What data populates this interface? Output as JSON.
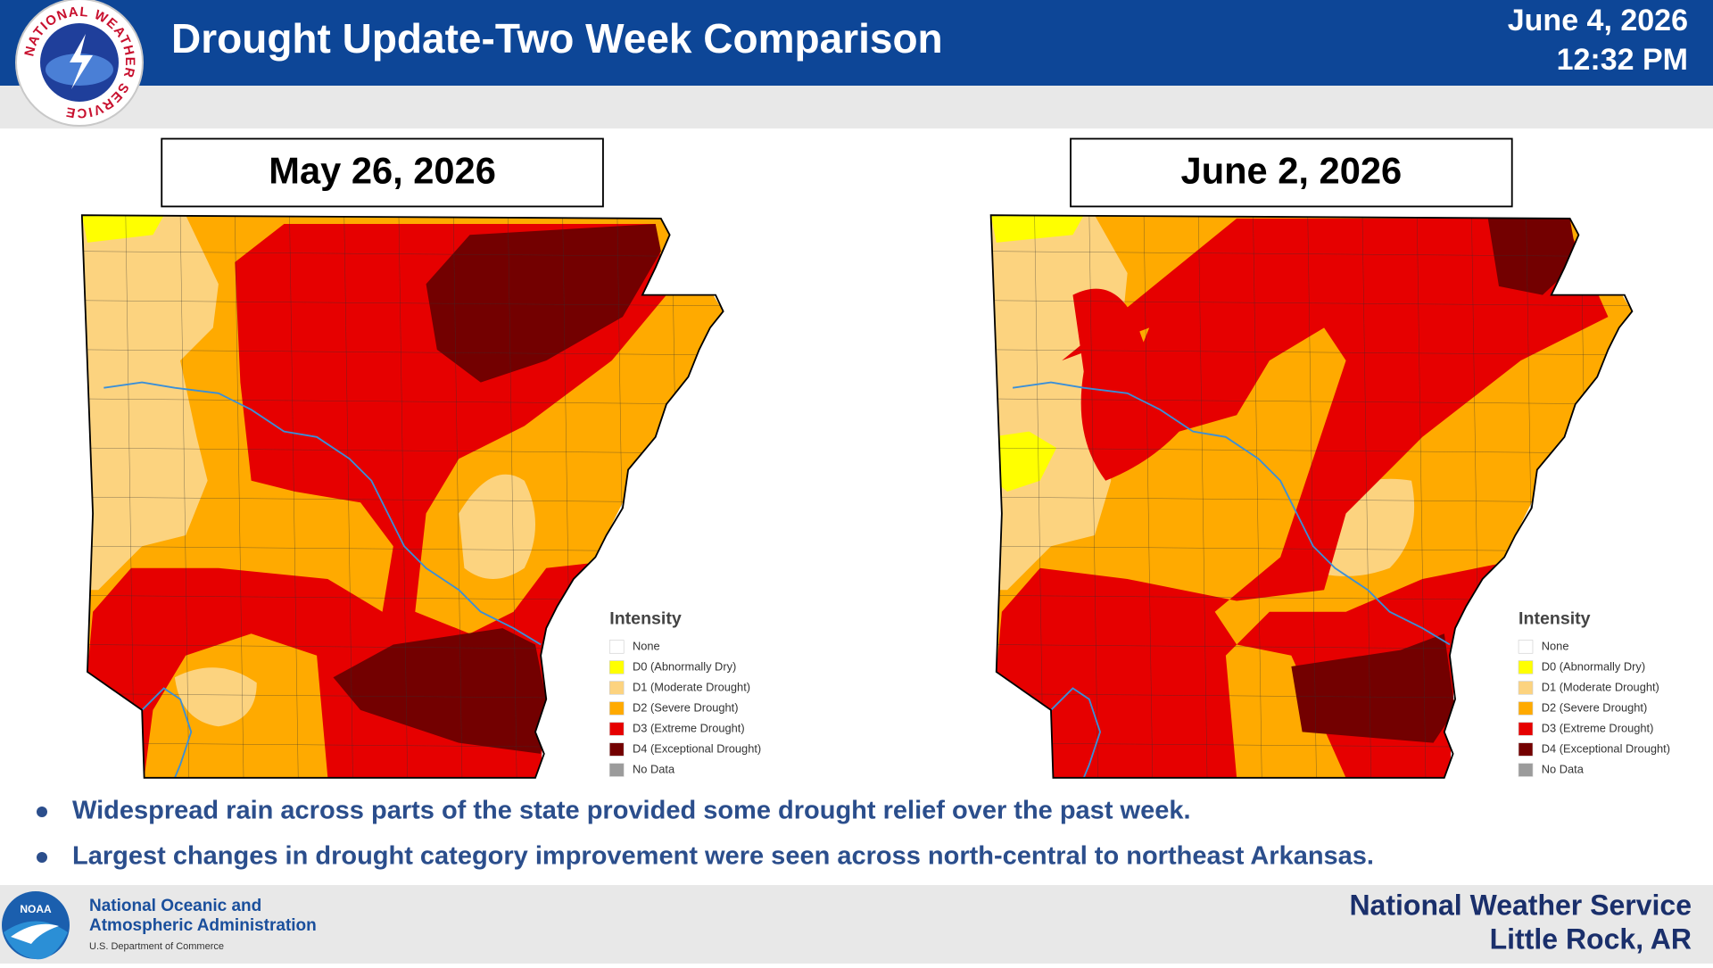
{
  "header": {
    "title": "Drought Update-Two Week Comparison",
    "date": "June 4, 2026",
    "time": "12:32 PM",
    "logo_text": "NATIONAL WEATHER SERVICE"
  },
  "maps": [
    {
      "title": "May 26, 2026"
    },
    {
      "title": "June 2, 2026"
    }
  ],
  "legend": {
    "title": "Intensity",
    "items": [
      {
        "label": "None",
        "color": "#ffffff"
      },
      {
        "label": "D0 (Abnormally Dry)",
        "color": "#ffff00"
      },
      {
        "label": "D1 (Moderate Drought)",
        "color": "#fcd37f"
      },
      {
        "label": "D2 (Severe Drought)",
        "color": "#ffaa00"
      },
      {
        "label": "D3 (Extreme Drought)",
        "color": "#e60000"
      },
      {
        "label": "D4 (Exceptional Drought)",
        "color": "#730000"
      },
      {
        "label": "No Data",
        "color": "#9b9b9b"
      }
    ]
  },
  "bullets": [
    "Widespread rain across parts of the state provided some drought relief over the past week.",
    "Largest changes in drought category improvement were seen across north-central to northeast Arkansas."
  ],
  "footer": {
    "noaa_logo": "NOAA",
    "agency_line1": "National Oceanic and",
    "agency_line2": "Atmospheric Administration",
    "department": "U.S. Department of Commerce",
    "office_line1": "National Weather Service",
    "office_line2": "Little Rock, AR"
  }
}
